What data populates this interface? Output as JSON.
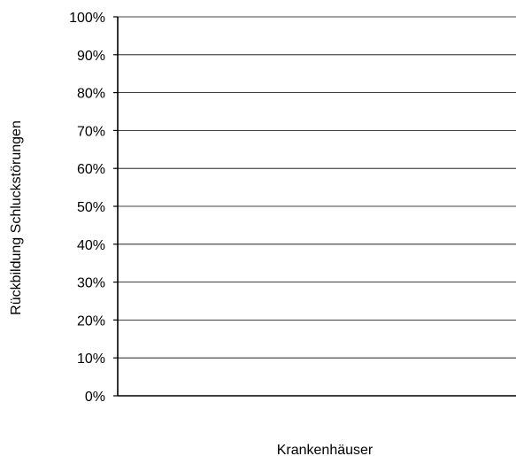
{
  "chart_data": {
    "type": "bar",
    "categories": [],
    "series": [],
    "title": "",
    "xlabel": "Krankenhäuser",
    "ylabel": "Rückbildung Schluckstörungen",
    "ylim": [
      0,
      100
    ],
    "y_unit": "%",
    "y_ticks": [
      "0%",
      "10%",
      "20%",
      "30%",
      "40%",
      "50%",
      "60%",
      "70%",
      "80%",
      "90%",
      "100%"
    ],
    "grid": true,
    "legend": "none"
  }
}
